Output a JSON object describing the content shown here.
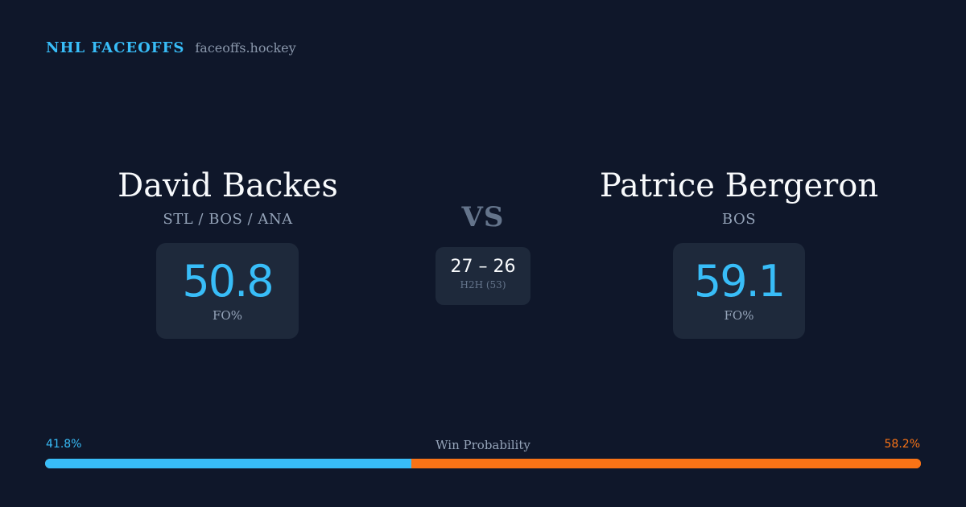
{
  "brand": {
    "name": "NHL FACEOFFS",
    "domain": "faceoffs.hockey"
  },
  "player_left": {
    "name": "David Backes",
    "teams": "STL / BOS / ANA",
    "fo_pct": "50.8",
    "fo_label": "FO%"
  },
  "player_right": {
    "name": "Patrice Bergeron",
    "teams": "BOS",
    "fo_pct": "59.1",
    "fo_label": "FO%"
  },
  "matchup": {
    "vs": "VS",
    "h2h_score": "27 – 26",
    "h2h_label": "H2H (53)"
  },
  "win_probability": {
    "title": "Win Probability",
    "left_label": "41.8%",
    "right_label": "58.2%",
    "left_value": 41.8,
    "right_value": 58.2,
    "colors": {
      "left": "#38bdf8",
      "right": "#f97316"
    }
  }
}
